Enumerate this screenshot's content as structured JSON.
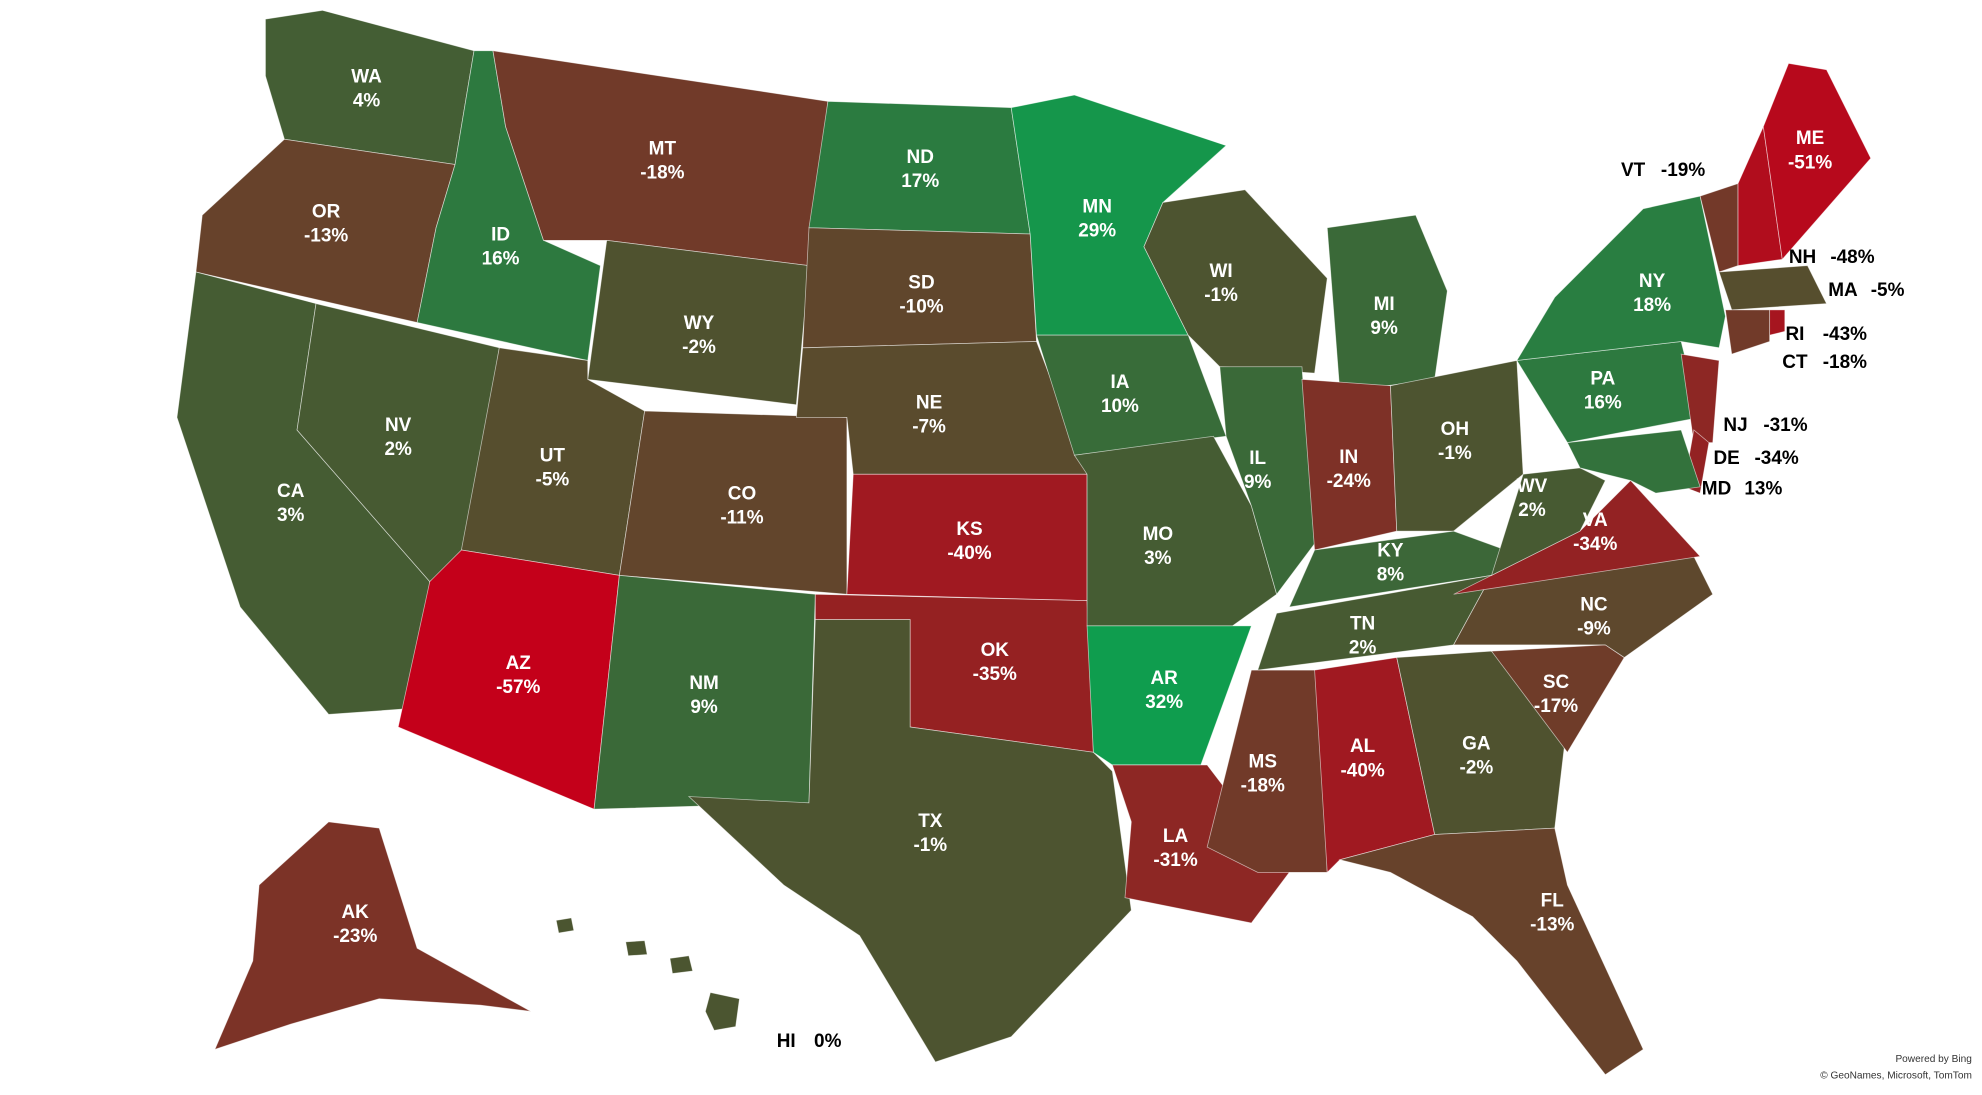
{
  "states": [
    {
      "code": "WA",
      "value": 4,
      "value_label": "4%"
    },
    {
      "code": "OR",
      "value": -13,
      "value_label": "-13%"
    },
    {
      "code": "CA",
      "value": 3,
      "value_label": "3%"
    },
    {
      "code": "NV",
      "value": 2,
      "value_label": "2%"
    },
    {
      "code": "ID",
      "value": 16,
      "value_label": "16%"
    },
    {
      "code": "MT",
      "value": -18,
      "value_label": "-18%"
    },
    {
      "code": "WY",
      "value": -2,
      "value_label": "-2%"
    },
    {
      "code": "UT",
      "value": -5,
      "value_label": "-5%"
    },
    {
      "code": "CO",
      "value": -11,
      "value_label": "-11%"
    },
    {
      "code": "AZ",
      "value": -57,
      "value_label": "-57%"
    },
    {
      "code": "NM",
      "value": 9,
      "value_label": "9%"
    },
    {
      "code": "ND",
      "value": 17,
      "value_label": "17%"
    },
    {
      "code": "SD",
      "value": -10,
      "value_label": "-10%"
    },
    {
      "code": "NE",
      "value": -7,
      "value_label": "-7%"
    },
    {
      "code": "KS",
      "value": -40,
      "value_label": "-40%"
    },
    {
      "code": "OK",
      "value": -35,
      "value_label": "-35%"
    },
    {
      "code": "TX",
      "value": -1,
      "value_label": "-1%"
    },
    {
      "code": "MN",
      "value": 29,
      "value_label": "29%"
    },
    {
      "code": "IA",
      "value": 10,
      "value_label": "10%"
    },
    {
      "code": "MO",
      "value": 3,
      "value_label": "3%"
    },
    {
      "code": "AR",
      "value": 32,
      "value_label": "32%"
    },
    {
      "code": "LA",
      "value": -31,
      "value_label": "-31%"
    },
    {
      "code": "WI",
      "value": -1,
      "value_label": "-1%"
    },
    {
      "code": "IL",
      "value": 9,
      "value_label": "9%"
    },
    {
      "code": "MI",
      "value": 9,
      "value_label": "9%"
    },
    {
      "code": "IN",
      "value": -24,
      "value_label": "-24%"
    },
    {
      "code": "OH",
      "value": -1,
      "value_label": "-1%"
    },
    {
      "code": "KY",
      "value": 8,
      "value_label": "8%"
    },
    {
      "code": "TN",
      "value": 2,
      "value_label": "2%"
    },
    {
      "code": "MS",
      "value": -18,
      "value_label": "-18%"
    },
    {
      "code": "AL",
      "value": -40,
      "value_label": "-40%"
    },
    {
      "code": "GA",
      "value": -2,
      "value_label": "-2%"
    },
    {
      "code": "FL",
      "value": -13,
      "value_label": "-13%"
    },
    {
      "code": "SC",
      "value": -17,
      "value_label": "-17%"
    },
    {
      "code": "NC",
      "value": -9,
      "value_label": "-9%"
    },
    {
      "code": "VA",
      "value": -34,
      "value_label": "-34%"
    },
    {
      "code": "WV",
      "value": 2,
      "value_label": "2%"
    },
    {
      "code": "PA",
      "value": 16,
      "value_label": "16%"
    },
    {
      "code": "NY",
      "value": 18,
      "value_label": "18%"
    },
    {
      "code": "NJ",
      "value": -31,
      "value_label": "-31%"
    },
    {
      "code": "DE",
      "value": -34,
      "value_label": "-34%"
    },
    {
      "code": "MD",
      "value": 13,
      "value_label": "13%"
    },
    {
      "code": "VT",
      "value": -19,
      "value_label": "-19%"
    },
    {
      "code": "NH",
      "value": -48,
      "value_label": "-48%"
    },
    {
      "code": "ME",
      "value": -51,
      "value_label": "-51%"
    },
    {
      "code": "MA",
      "value": -5,
      "value_label": "-5%"
    },
    {
      "code": "RI",
      "value": -43,
      "value_label": "-43%"
    },
    {
      "code": "CT",
      "value": -18,
      "value_label": "-18%"
    },
    {
      "code": "AK",
      "value": -23,
      "value_label": "-23%"
    },
    {
      "code": "HI",
      "value": 0,
      "value_label": "0%"
    }
  ],
  "color_scale": {
    "negative": "#c4001a",
    "zero": "#4b5530",
    "positive": "#0f9d4e"
  },
  "attribution": [
    "Powered by Bing",
    "© GeoNames, Microsoft, TomTom"
  ]
}
